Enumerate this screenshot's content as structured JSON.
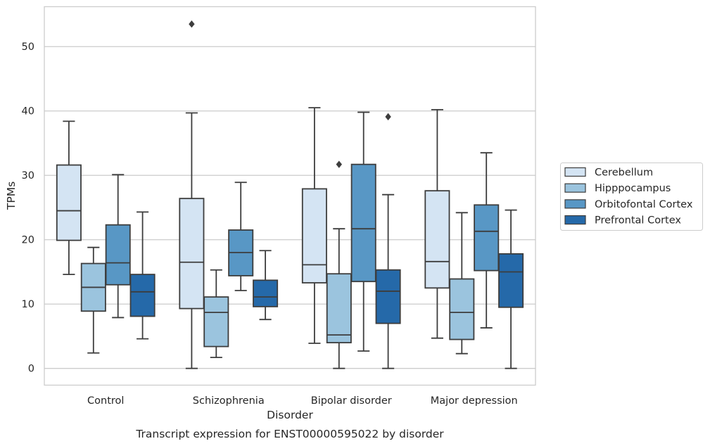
{
  "chart_data": {
    "type": "box",
    "title": "",
    "caption": "Transcript expression for ENST00000595022 by disorder",
    "xlabel": "Disorder",
    "ylabel": "TPMs",
    "ylim": [
      -2.6,
      56.2
    ],
    "yticks": [
      0,
      10,
      20,
      30,
      40,
      50
    ],
    "grid": "horizontal",
    "legend_placement": "right",
    "categories": [
      "Control",
      "Schizophrenia",
      "Bipolar disorder",
      "Major depression"
    ],
    "series": [
      {
        "name": "Cerebellum",
        "color": "#d4e4f3",
        "boxes": [
          {
            "whisker_low": 14.6,
            "q1": 19.9,
            "median": 24.5,
            "q3": 31.6,
            "whisker_high": 38.4,
            "outliers": []
          },
          {
            "whisker_low": 0.0,
            "q1": 9.3,
            "median": 16.5,
            "q3": 26.4,
            "whisker_high": 39.7,
            "outliers": [
              53.5
            ]
          },
          {
            "whisker_low": 3.9,
            "q1": 13.3,
            "median": 16.1,
            "q3": 27.9,
            "whisker_high": 40.5,
            "outliers": []
          },
          {
            "whisker_low": 4.7,
            "q1": 12.5,
            "median": 16.6,
            "q3": 27.6,
            "whisker_high": 40.2,
            "outliers": []
          }
        ]
      },
      {
        "name": "Hipppocampus",
        "color": "#9bc4de",
        "boxes": [
          {
            "whisker_low": 2.4,
            "q1": 8.9,
            "median": 12.6,
            "q3": 16.3,
            "whisker_high": 18.8,
            "outliers": []
          },
          {
            "whisker_low": 1.7,
            "q1": 3.4,
            "median": 8.7,
            "q3": 11.1,
            "whisker_high": 15.3,
            "outliers": []
          },
          {
            "whisker_low": 0.0,
            "q1": 4.0,
            "median": 5.2,
            "q3": 14.7,
            "whisker_high": 21.7,
            "outliers": [
              31.7
            ]
          },
          {
            "whisker_low": 2.3,
            "q1": 4.5,
            "median": 8.7,
            "q3": 13.9,
            "whisker_high": 24.2,
            "outliers": []
          }
        ]
      },
      {
        "name": "Orbitofontal Cortex",
        "color": "#5897c5",
        "boxes": [
          {
            "whisker_low": 7.9,
            "q1": 13.0,
            "median": 16.4,
            "q3": 22.3,
            "whisker_high": 30.1,
            "outliers": []
          },
          {
            "whisker_low": 12.1,
            "q1": 14.4,
            "median": 18.0,
            "q3": 21.5,
            "whisker_high": 28.9,
            "outliers": []
          },
          {
            "whisker_low": 2.7,
            "q1": 13.5,
            "median": 21.7,
            "q3": 31.7,
            "whisker_high": 39.8,
            "outliers": []
          },
          {
            "whisker_low": 6.3,
            "q1": 15.2,
            "median": 21.3,
            "q3": 25.4,
            "whisker_high": 33.5,
            "outliers": []
          }
        ]
      },
      {
        "name": "Prefrontal Cortex",
        "color": "#2569a9",
        "boxes": [
          {
            "whisker_low": 4.6,
            "q1": 8.1,
            "median": 11.9,
            "q3": 14.6,
            "whisker_high": 24.3,
            "outliers": []
          },
          {
            "whisker_low": 7.6,
            "q1": 9.6,
            "median": 11.1,
            "q3": 13.7,
            "whisker_high": 18.3,
            "outliers": []
          },
          {
            "whisker_low": 0.0,
            "q1": 7.0,
            "median": 12.0,
            "q3": 15.3,
            "whisker_high": 27.0,
            "outliers": [
              39.1
            ]
          },
          {
            "whisker_low": 0.0,
            "q1": 9.5,
            "median": 15.0,
            "q3": 17.8,
            "whisker_high": 24.6,
            "outliers": []
          }
        ]
      }
    ]
  }
}
